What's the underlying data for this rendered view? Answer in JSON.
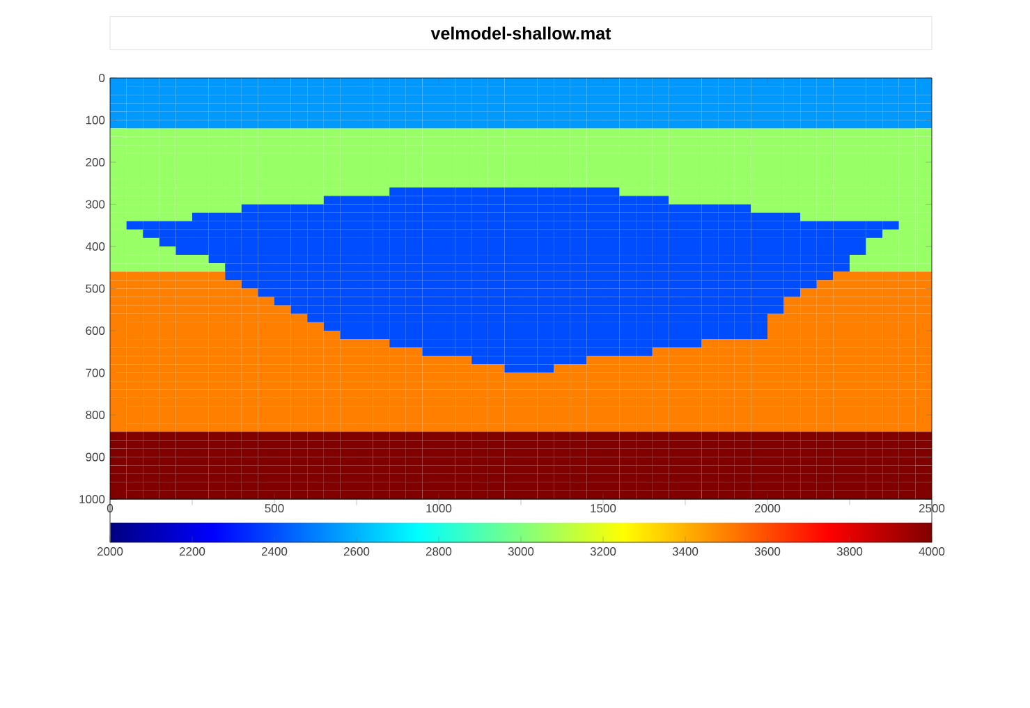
{
  "chart_data": {
    "type": "heatmap",
    "title": "velmodel-shallow.mat",
    "x": [
      25,
      75,
      125,
      175,
      225,
      275,
      325,
      375,
      425,
      475,
      525,
      575,
      625,
      675,
      725,
      775,
      825,
      875,
      925,
      975,
      1025,
      1075,
      1125,
      1175,
      1225,
      1275,
      1325,
      1375,
      1425,
      1475,
      1525,
      1575,
      1625,
      1675,
      1725,
      1775,
      1825,
      1875,
      1925,
      1975,
      2025,
      2075,
      2125,
      2175,
      2225,
      2275,
      2325,
      2375,
      2425,
      2475
    ],
    "y": [
      10,
      30,
      50,
      70,
      90,
      110,
      130,
      150,
      170,
      190,
      210,
      230,
      250,
      270,
      290,
      310,
      330,
      350,
      370,
      390,
      410,
      430,
      450,
      470,
      490,
      510,
      530,
      550,
      570,
      590,
      610,
      630,
      650,
      670,
      690,
      710,
      730,
      750,
      770,
      790,
      810,
      830,
      850,
      870,
      890,
      910,
      930,
      950,
      970,
      990
    ],
    "xlim": [
      0,
      2500
    ],
    "xticks": [
      0,
      500,
      1000,
      1500,
      2000,
      2500
    ],
    "ylim": [
      1000,
      0
    ],
    "yticks": [
      0,
      100,
      200,
      300,
      400,
      500,
      600,
      700,
      800,
      900,
      1000
    ],
    "clim": [
      2000,
      4000
    ],
    "cticks": [
      2000,
      2200,
      2400,
      2600,
      2800,
      3000,
      3200,
      3400,
      3600,
      3800,
      4000
    ],
    "cells": [
      [
        2550,
        2550,
        2550,
        2550,
        2550,
        2550,
        2550,
        2550,
        2550,
        2550,
        2550,
        2550,
        2550,
        2550,
        2550,
        2550,
        2550,
        2550,
        2550,
        2550,
        2550,
        2550,
        2550,
        2550,
        2550,
        2550,
        2550,
        2550,
        2550,
        2550,
        2550,
        2550,
        2550,
        2550,
        2550,
        2550,
        2550,
        2550,
        2550,
        2550,
        2550,
        2550,
        2550,
        2550,
        2550,
        2550,
        2550,
        2550,
        2550,
        2550
      ],
      [
        2550,
        2550,
        2550,
        2550,
        2550,
        2550,
        2550,
        2550,
        2550,
        2550,
        2550,
        2550,
        2550,
        2550,
        2550,
        2550,
        2550,
        2550,
        2550,
        2550,
        2550,
        2550,
        2550,
        2550,
        2550,
        2550,
        2550,
        2550,
        2550,
        2550,
        2550,
        2550,
        2550,
        2550,
        2550,
        2550,
        2550,
        2550,
        2550,
        2550,
        2550,
        2550,
        2550,
        2550,
        2550,
        2550,
        2550,
        2550,
        2550,
        2550
      ],
      [
        2550,
        2550,
        2550,
        2550,
        2550,
        2550,
        2550,
        2550,
        2550,
        2550,
        2550,
        2550,
        2550,
        2550,
        2550,
        2550,
        2550,
        2550,
        2550,
        2550,
        2550,
        2550,
        2550,
        2550,
        2550,
        2550,
        2550,
        2550,
        2550,
        2550,
        2550,
        2550,
        2550,
        2550,
        2550,
        2550,
        2550,
        2550,
        2550,
        2550,
        2550,
        2550,
        2550,
        2550,
        2550,
        2550,
        2550,
        2550,
        2550,
        2550
      ],
      [
        2550,
        2550,
        2550,
        2550,
        2550,
        2550,
        2550,
        2550,
        2550,
        2550,
        2550,
        2550,
        2550,
        2550,
        2550,
        2550,
        2550,
        2550,
        2550,
        2550,
        2550,
        2550,
        2550,
        2550,
        2550,
        2550,
        2550,
        2550,
        2550,
        2550,
        2550,
        2550,
        2550,
        2550,
        2550,
        2550,
        2550,
        2550,
        2550,
        2550,
        2550,
        2550,
        2550,
        2550,
        2550,
        2550,
        2550,
        2550,
        2550,
        2550
      ],
      [
        2550,
        2550,
        2550,
        2550,
        2550,
        2550,
        2550,
        2550,
        2550,
        2550,
        2550,
        2550,
        2550,
        2550,
        2550,
        2550,
        2550,
        2550,
        2550,
        2550,
        2550,
        2550,
        2550,
        2550,
        2550,
        2550,
        2550,
        2550,
        2550,
        2550,
        2550,
        2550,
        2550,
        2550,
        2550,
        2550,
        2550,
        2550,
        2550,
        2550,
        2550,
        2550,
        2550,
        2550,
        2550,
        2550,
        2550,
        2550,
        2550,
        2550
      ],
      [
        2550,
        2550,
        2550,
        2550,
        2550,
        2550,
        2550,
        2550,
        2550,
        2550,
        2550,
        2550,
        2550,
        2550,
        2550,
        2550,
        2550,
        2550,
        2550,
        2550,
        2550,
        2550,
        2550,
        2550,
        2550,
        2550,
        2550,
        2550,
        2550,
        2550,
        2550,
        2550,
        2550,
        2550,
        2550,
        2550,
        2550,
        2550,
        2550,
        2550,
        2550,
        2550,
        2550,
        2550,
        2550,
        2550,
        2550,
        2550,
        2550,
        2550
      ],
      [
        3050,
        3050,
        3050,
        3050,
        3050,
        3050,
        3050,
        3050,
        3050,
        3050,
        3050,
        3050,
        3050,
        3050,
        3050,
        3050,
        3050,
        3050,
        3050,
        3050,
        3050,
        3050,
        3050,
        3050,
        3050,
        3050,
        3050,
        3050,
        3050,
        3050,
        3050,
        3050,
        3050,
        3050,
        3050,
        3050,
        3050,
        3050,
        3050,
        3050,
        3050,
        3050,
        3050,
        3050,
        3050,
        3050,
        3050,
        3050,
        3050,
        3050
      ],
      [
        3050,
        3050,
        3050,
        3050,
        3050,
        3050,
        3050,
        3050,
        3050,
        3050,
        3050,
        3050,
        3050,
        3050,
        3050,
        3050,
        3050,
        3050,
        3050,
        3050,
        3050,
        3050,
        3050,
        3050,
        3050,
        3050,
        3050,
        3050,
        3050,
        3050,
        3050,
        3050,
        3050,
        3050,
        3050,
        3050,
        3050,
        3050,
        3050,
        3050,
        3050,
        3050,
        3050,
        3050,
        3050,
        3050,
        3050,
        3050,
        3050,
        3050
      ],
      [
        3050,
        3050,
        3050,
        3050,
        3050,
        3050,
        3050,
        3050,
        3050,
        3050,
        3050,
        3050,
        3050,
        3050,
        3050,
        3050,
        3050,
        3050,
        3050,
        3050,
        3050,
        3050,
        3050,
        3050,
        3050,
        3050,
        3050,
        3050,
        3050,
        3050,
        3050,
        3050,
        3050,
        3050,
        3050,
        3050,
        3050,
        3050,
        3050,
        3050,
        3050,
        3050,
        3050,
        3050,
        3050,
        3050,
        3050,
        3050,
        3050,
        3050
      ],
      [
        3050,
        3050,
        3050,
        3050,
        3050,
        3050,
        3050,
        3050,
        3050,
        3050,
        3050,
        3050,
        3050,
        3050,
        3050,
        3050,
        3050,
        3050,
        3050,
        3050,
        3050,
        3050,
        3050,
        3050,
        3050,
        3050,
        3050,
        3050,
        3050,
        3050,
        3050,
        3050,
        3050,
        3050,
        3050,
        3050,
        3050,
        3050,
        3050,
        3050,
        3050,
        3050,
        3050,
        3050,
        3050,
        3050,
        3050,
        3050,
        3050,
        3050
      ],
      [
        3050,
        3050,
        3050,
        3050,
        3050,
        3050,
        3050,
        3050,
        3050,
        3050,
        3050,
        3050,
        3050,
        3050,
        3050,
        3050,
        3050,
        3050,
        3050,
        3050,
        3050,
        3050,
        3050,
        3050,
        3050,
        3050,
        3050,
        3050,
        3050,
        3050,
        3050,
        3050,
        3050,
        3050,
        3050,
        3050,
        3050,
        3050,
        3050,
        3050,
        3050,
        3050,
        3050,
        3050,
        3050,
        3050,
        3050,
        3050,
        3050,
        3050
      ],
      [
        3050,
        3050,
        3050,
        3050,
        3050,
        3050,
        3050,
        3050,
        3050,
        3050,
        3050,
        3050,
        3050,
        3050,
        3050,
        3050,
        3050,
        3050,
        3050,
        3050,
        3050,
        3050,
        3050,
        3050,
        3050,
        3050,
        3050,
        3050,
        3050,
        3050,
        3050,
        3050,
        3050,
        3050,
        3050,
        3050,
        3050,
        3050,
        3050,
        3050,
        3050,
        3050,
        3050,
        3050,
        3050,
        3050,
        3050,
        3050,
        3050,
        3050
      ],
      [
        3050,
        3050,
        3050,
        3050,
        3050,
        3050,
        3050,
        3050,
        3050,
        3050,
        3050,
        3050,
        3050,
        3050,
        3050,
        3050,
        3050,
        3050,
        3050,
        3050,
        3050,
        3050,
        3050,
        3050,
        3050,
        3050,
        3050,
        3050,
        3050,
        3050,
        3050,
        3050,
        3050,
        3050,
        3050,
        3050,
        3050,
        3050,
        3050,
        3050,
        3050,
        3050,
        3050,
        3050,
        3050,
        3050,
        3050,
        3050,
        3050,
        3050
      ],
      [
        3050,
        3050,
        3050,
        3050,
        3050,
        3050,
        3050,
        3050,
        3050,
        3050,
        3050,
        3050,
        3050,
        3050,
        3050,
        3050,
        3050,
        2400,
        2400,
        2400,
        2400,
        2400,
        2400,
        2400,
        2400,
        2400,
        2400,
        2400,
        2400,
        2400,
        2400,
        3050,
        3050,
        3050,
        3050,
        3050,
        3050,
        3050,
        3050,
        3050,
        3050,
        3050,
        3050,
        3050,
        3050,
        3050,
        3050,
        3050,
        3050,
        3050
      ],
      [
        3050,
        3050,
        3050,
        3050,
        3050,
        3050,
        3050,
        3050,
        3050,
        3050,
        3050,
        3050,
        3050,
        2400,
        2400,
        2400,
        2400,
        2400,
        2400,
        2400,
        2400,
        2400,
        2400,
        2400,
        2400,
        2400,
        2400,
        2400,
        2400,
        2400,
        2400,
        2400,
        2400,
        2400,
        3050,
        3050,
        3050,
        3050,
        3050,
        3050,
        3050,
        3050,
        3050,
        3050,
        3050,
        3050,
        3050,
        3050,
        3050,
        3050
      ],
      [
        3050,
        3050,
        3050,
        3050,
        3050,
        3050,
        3050,
        3050,
        2400,
        2400,
        2400,
        2400,
        2400,
        2400,
        2400,
        2400,
        2400,
        2400,
        2400,
        2400,
        2400,
        2400,
        2400,
        2400,
        2400,
        2400,
        2400,
        2400,
        2400,
        2400,
        2400,
        2400,
        2400,
        2400,
        2400,
        2400,
        2400,
        2400,
        2400,
        3050,
        3050,
        3050,
        3050,
        3050,
        3050,
        3050,
        3050,
        3050,
        3050,
        3050
      ],
      [
        3050,
        3050,
        3050,
        3050,
        3050,
        2400,
        2400,
        2400,
        2400,
        2400,
        2400,
        2400,
        2400,
        2400,
        2400,
        2400,
        2400,
        2400,
        2400,
        2400,
        2400,
        2400,
        2400,
        2400,
        2400,
        2400,
        2400,
        2400,
        2400,
        2400,
        2400,
        2400,
        2400,
        2400,
        2400,
        2400,
        2400,
        2400,
        2400,
        2400,
        2400,
        2400,
        3050,
        3050,
        3050,
        3050,
        3050,
        3050,
        3050,
        3050
      ],
      [
        3050,
        2400,
        2400,
        2400,
        2400,
        2400,
        2400,
        2400,
        2400,
        2400,
        2400,
        2400,
        2400,
        2400,
        2400,
        2400,
        2400,
        2400,
        2400,
        2400,
        2400,
        2400,
        2400,
        2400,
        2400,
        2400,
        2400,
        2400,
        2400,
        2400,
        2400,
        2400,
        2400,
        2400,
        2400,
        2400,
        2400,
        2400,
        2400,
        2400,
        2400,
        2400,
        2400,
        2400,
        2400,
        2400,
        2400,
        2400,
        3050,
        3050
      ],
      [
        3050,
        3050,
        2400,
        2400,
        2400,
        2400,
        2400,
        2400,
        2400,
        2400,
        2400,
        2400,
        2400,
        2400,
        2400,
        2400,
        2400,
        2400,
        2400,
        2400,
        2400,
        2400,
        2400,
        2400,
        2400,
        2400,
        2400,
        2400,
        2400,
        2400,
        2400,
        2400,
        2400,
        2400,
        2400,
        2400,
        2400,
        2400,
        2400,
        2400,
        2400,
        2400,
        2400,
        2400,
        2400,
        2400,
        2400,
        3050,
        3050,
        3050
      ],
      [
        3050,
        3050,
        3050,
        2400,
        2400,
        2400,
        2400,
        2400,
        2400,
        2400,
        2400,
        2400,
        2400,
        2400,
        2400,
        2400,
        2400,
        2400,
        2400,
        2400,
        2400,
        2400,
        2400,
        2400,
        2400,
        2400,
        2400,
        2400,
        2400,
        2400,
        2400,
        2400,
        2400,
        2400,
        2400,
        2400,
        2400,
        2400,
        2400,
        2400,
        2400,
        2400,
        2400,
        2400,
        2400,
        2400,
        3050,
        3050,
        3050,
        3050
      ],
      [
        3050,
        3050,
        3050,
        3050,
        2400,
        2400,
        2400,
        2400,
        2400,
        2400,
        2400,
        2400,
        2400,
        2400,
        2400,
        2400,
        2400,
        2400,
        2400,
        2400,
        2400,
        2400,
        2400,
        2400,
        2400,
        2400,
        2400,
        2400,
        2400,
        2400,
        2400,
        2400,
        2400,
        2400,
        2400,
        2400,
        2400,
        2400,
        2400,
        2400,
        2400,
        2400,
        2400,
        2400,
        2400,
        2400,
        3050,
        3050,
        3050,
        3050
      ],
      [
        3050,
        3050,
        3050,
        3050,
        3050,
        3050,
        2400,
        2400,
        2400,
        2400,
        2400,
        2400,
        2400,
        2400,
        2400,
        2400,
        2400,
        2400,
        2400,
        2400,
        2400,
        2400,
        2400,
        2400,
        2400,
        2400,
        2400,
        2400,
        2400,
        2400,
        2400,
        2400,
        2400,
        2400,
        2400,
        2400,
        2400,
        2400,
        2400,
        2400,
        2400,
        2400,
        2400,
        2400,
        2400,
        3050,
        3050,
        3050,
        3050,
        3050
      ],
      [
        3050,
        3050,
        3050,
        3050,
        3050,
        3050,
        3050,
        2400,
        2400,
        2400,
        2400,
        2400,
        2400,
        2400,
        2400,
        2400,
        2400,
        2400,
        2400,
        2400,
        2400,
        2400,
        2400,
        2400,
        2400,
        2400,
        2400,
        2400,
        2400,
        2400,
        2400,
        2400,
        2400,
        2400,
        2400,
        2400,
        2400,
        2400,
        2400,
        2400,
        2400,
        2400,
        2400,
        2400,
        2400,
        3050,
        3050,
        3050,
        3050,
        3050
      ],
      [
        3500,
        3500,
        3500,
        3500,
        3500,
        3500,
        3500,
        2400,
        2400,
        2400,
        2400,
        2400,
        2400,
        2400,
        2400,
        2400,
        2400,
        2400,
        2400,
        2400,
        2400,
        2400,
        2400,
        2400,
        2400,
        2400,
        2400,
        2400,
        2400,
        2400,
        2400,
        2400,
        2400,
        2400,
        2400,
        2400,
        2400,
        2400,
        2400,
        2400,
        2400,
        2400,
        2400,
        2400,
        3500,
        3500,
        3500,
        3500,
        3500,
        3500
      ],
      [
        3500,
        3500,
        3500,
        3500,
        3500,
        3500,
        3500,
        3500,
        2400,
        2400,
        2400,
        2400,
        2400,
        2400,
        2400,
        2400,
        2400,
        2400,
        2400,
        2400,
        2400,
        2400,
        2400,
        2400,
        2400,
        2400,
        2400,
        2400,
        2400,
        2400,
        2400,
        2400,
        2400,
        2400,
        2400,
        2400,
        2400,
        2400,
        2400,
        2400,
        2400,
        2400,
        2400,
        3500,
        3500,
        3500,
        3500,
        3500,
        3500,
        3500
      ],
      [
        3500,
        3500,
        3500,
        3500,
        3500,
        3500,
        3500,
        3500,
        3500,
        2400,
        2400,
        2400,
        2400,
        2400,
        2400,
        2400,
        2400,
        2400,
        2400,
        2400,
        2400,
        2400,
        2400,
        2400,
        2400,
        2400,
        2400,
        2400,
        2400,
        2400,
        2400,
        2400,
        2400,
        2400,
        2400,
        2400,
        2400,
        2400,
        2400,
        2400,
        2400,
        2400,
        3500,
        3500,
        3500,
        3500,
        3500,
        3500,
        3500,
        3500
      ],
      [
        3500,
        3500,
        3500,
        3500,
        3500,
        3500,
        3500,
        3500,
        3500,
        3500,
        2400,
        2400,
        2400,
        2400,
        2400,
        2400,
        2400,
        2400,
        2400,
        2400,
        2400,
        2400,
        2400,
        2400,
        2400,
        2400,
        2400,
        2400,
        2400,
        2400,
        2400,
        2400,
        2400,
        2400,
        2400,
        2400,
        2400,
        2400,
        2400,
        2400,
        2400,
        3500,
        3500,
        3500,
        3500,
        3500,
        3500,
        3500,
        3500,
        3500
      ],
      [
        3500,
        3500,
        3500,
        3500,
        3500,
        3500,
        3500,
        3500,
        3500,
        3500,
        3500,
        2400,
        2400,
        2400,
        2400,
        2400,
        2400,
        2400,
        2400,
        2400,
        2400,
        2400,
        2400,
        2400,
        2400,
        2400,
        2400,
        2400,
        2400,
        2400,
        2400,
        2400,
        2400,
        2400,
        2400,
        2400,
        2400,
        2400,
        2400,
        2400,
        2400,
        3500,
        3500,
        3500,
        3500,
        3500,
        3500,
        3500,
        3500,
        3500
      ],
      [
        3500,
        3500,
        3500,
        3500,
        3500,
        3500,
        3500,
        3500,
        3500,
        3500,
        3500,
        3500,
        2400,
        2400,
        2400,
        2400,
        2400,
        2400,
        2400,
        2400,
        2400,
        2400,
        2400,
        2400,
        2400,
        2400,
        2400,
        2400,
        2400,
        2400,
        2400,
        2400,
        2400,
        2400,
        2400,
        2400,
        2400,
        2400,
        2400,
        2400,
        3500,
        3500,
        3500,
        3500,
        3500,
        3500,
        3500,
        3500,
        3500,
        3500
      ],
      [
        3500,
        3500,
        3500,
        3500,
        3500,
        3500,
        3500,
        3500,
        3500,
        3500,
        3500,
        3500,
        3500,
        2400,
        2400,
        2400,
        2400,
        2400,
        2400,
        2400,
        2400,
        2400,
        2400,
        2400,
        2400,
        2400,
        2400,
        2400,
        2400,
        2400,
        2400,
        2400,
        2400,
        2400,
        2400,
        2400,
        2400,
        2400,
        2400,
        2400,
        3500,
        3500,
        3500,
        3500,
        3500,
        3500,
        3500,
        3500,
        3500,
        3500
      ],
      [
        3500,
        3500,
        3500,
        3500,
        3500,
        3500,
        3500,
        3500,
        3500,
        3500,
        3500,
        3500,
        3500,
        3500,
        2400,
        2400,
        2400,
        2400,
        2400,
        2400,
        2400,
        2400,
        2400,
        2400,
        2400,
        2400,
        2400,
        2400,
        2400,
        2400,
        2400,
        2400,
        2400,
        2400,
        2400,
        2400,
        2400,
        2400,
        2400,
        2400,
        3500,
        3500,
        3500,
        3500,
        3500,
        3500,
        3500,
        3500,
        3500,
        3500
      ],
      [
        3500,
        3500,
        3500,
        3500,
        3500,
        3500,
        3500,
        3500,
        3500,
        3500,
        3500,
        3500,
        3500,
        3500,
        3500,
        3500,
        3500,
        2400,
        2400,
        2400,
        2400,
        2400,
        2400,
        2400,
        2400,
        2400,
        2400,
        2400,
        2400,
        2400,
        2400,
        2400,
        2400,
        2400,
        2400,
        2400,
        3500,
        3500,
        3500,
        3500,
        3500,
        3500,
        3500,
        3500,
        3500,
        3500,
        3500,
        3500,
        3500,
        3500
      ],
      [
        3500,
        3500,
        3500,
        3500,
        3500,
        3500,
        3500,
        3500,
        3500,
        3500,
        3500,
        3500,
        3500,
        3500,
        3500,
        3500,
        3500,
        3500,
        3500,
        2400,
        2400,
        2400,
        2400,
        2400,
        2400,
        2400,
        2400,
        2400,
        2400,
        2400,
        2400,
        2400,
        2400,
        3500,
        3500,
        3500,
        3500,
        3500,
        3500,
        3500,
        3500,
        3500,
        3500,
        3500,
        3500,
        3500,
        3500,
        3500,
        3500,
        3500
      ],
      [
        3500,
        3500,
        3500,
        3500,
        3500,
        3500,
        3500,
        3500,
        3500,
        3500,
        3500,
        3500,
        3500,
        3500,
        3500,
        3500,
        3500,
        3500,
        3500,
        3500,
        3500,
        3500,
        2400,
        2400,
        2400,
        2400,
        2400,
        2400,
        2400,
        3500,
        3500,
        3500,
        3500,
        3500,
        3500,
        3500,
        3500,
        3500,
        3500,
        3500,
        3500,
        3500,
        3500,
        3500,
        3500,
        3500,
        3500,
        3500,
        3500,
        3500
      ],
      [
        3500,
        3500,
        3500,
        3500,
        3500,
        3500,
        3500,
        3500,
        3500,
        3500,
        3500,
        3500,
        3500,
        3500,
        3500,
        3500,
        3500,
        3500,
        3500,
        3500,
        3500,
        3500,
        3500,
        3500,
        2400,
        2400,
        2400,
        3500,
        3500,
        3500,
        3500,
        3500,
        3500,
        3500,
        3500,
        3500,
        3500,
        3500,
        3500,
        3500,
        3500,
        3500,
        3500,
        3500,
        3500,
        3500,
        3500,
        3500,
        3500,
        3500
      ],
      [
        3500,
        3500,
        3500,
        3500,
        3500,
        3500,
        3500,
        3500,
        3500,
        3500,
        3500,
        3500,
        3500,
        3500,
        3500,
        3500,
        3500,
        3500,
        3500,
        3500,
        3500,
        3500,
        3500,
        3500,
        3500,
        3500,
        3500,
        3500,
        3500,
        3500,
        3500,
        3500,
        3500,
        3500,
        3500,
        3500,
        3500,
        3500,
        3500,
        3500,
        3500,
        3500,
        3500,
        3500,
        3500,
        3500,
        3500,
        3500,
        3500,
        3500
      ],
      [
        3500,
        3500,
        3500,
        3500,
        3500,
        3500,
        3500,
        3500,
        3500,
        3500,
        3500,
        3500,
        3500,
        3500,
        3500,
        3500,
        3500,
        3500,
        3500,
        3500,
        3500,
        3500,
        3500,
        3500,
        3500,
        3500,
        3500,
        3500,
        3500,
        3500,
        3500,
        3500,
        3500,
        3500,
        3500,
        3500,
        3500,
        3500,
        3500,
        3500,
        3500,
        3500,
        3500,
        3500,
        3500,
        3500,
        3500,
        3500,
        3500,
        3500
      ],
      [
        3500,
        3500,
        3500,
        3500,
        3500,
        3500,
        3500,
        3500,
        3500,
        3500,
        3500,
        3500,
        3500,
        3500,
        3500,
        3500,
        3500,
        3500,
        3500,
        3500,
        3500,
        3500,
        3500,
        3500,
        3500,
        3500,
        3500,
        3500,
        3500,
        3500,
        3500,
        3500,
        3500,
        3500,
        3500,
        3500,
        3500,
        3500,
        3500,
        3500,
        3500,
        3500,
        3500,
        3500,
        3500,
        3500,
        3500,
        3500,
        3500,
        3500
      ],
      [
        3500,
        3500,
        3500,
        3500,
        3500,
        3500,
        3500,
        3500,
        3500,
        3500,
        3500,
        3500,
        3500,
        3500,
        3500,
        3500,
        3500,
        3500,
        3500,
        3500,
        3500,
        3500,
        3500,
        3500,
        3500,
        3500,
        3500,
        3500,
        3500,
        3500,
        3500,
        3500,
        3500,
        3500,
        3500,
        3500,
        3500,
        3500,
        3500,
        3500,
        3500,
        3500,
        3500,
        3500,
        3500,
        3500,
        3500,
        3500,
        3500,
        3500
      ],
      [
        3500,
        3500,
        3500,
        3500,
        3500,
        3500,
        3500,
        3500,
        3500,
        3500,
        3500,
        3500,
        3500,
        3500,
        3500,
        3500,
        3500,
        3500,
        3500,
        3500,
        3500,
        3500,
        3500,
        3500,
        3500,
        3500,
        3500,
        3500,
        3500,
        3500,
        3500,
        3500,
        3500,
        3500,
        3500,
        3500,
        3500,
        3500,
        3500,
        3500,
        3500,
        3500,
        3500,
        3500,
        3500,
        3500,
        3500,
        3500,
        3500,
        3500
      ],
      [
        3500,
        3500,
        3500,
        3500,
        3500,
        3500,
        3500,
        3500,
        3500,
        3500,
        3500,
        3500,
        3500,
        3500,
        3500,
        3500,
        3500,
        3500,
        3500,
        3500,
        3500,
        3500,
        3500,
        3500,
        3500,
        3500,
        3500,
        3500,
        3500,
        3500,
        3500,
        3500,
        3500,
        3500,
        3500,
        3500,
        3500,
        3500,
        3500,
        3500,
        3500,
        3500,
        3500,
        3500,
        3500,
        3500,
        3500,
        3500,
        3500,
        3500
      ],
      [
        3500,
        3500,
        3500,
        3500,
        3500,
        3500,
        3500,
        3500,
        3500,
        3500,
        3500,
        3500,
        3500,
        3500,
        3500,
        3500,
        3500,
        3500,
        3500,
        3500,
        3500,
        3500,
        3500,
        3500,
        3500,
        3500,
        3500,
        3500,
        3500,
        3500,
        3500,
        3500,
        3500,
        3500,
        3500,
        3500,
        3500,
        3500,
        3500,
        3500,
        3500,
        3500,
        3500,
        3500,
        3500,
        3500,
        3500,
        3500,
        3500,
        3500
      ],
      [
        4000,
        4000,
        4000,
        4000,
        4000,
        4000,
        4000,
        4000,
        4000,
        4000,
        4000,
        4000,
        4000,
        4000,
        4000,
        4000,
        4000,
        4000,
        4000,
        4000,
        4000,
        4000,
        4000,
        4000,
        4000,
        4000,
        4000,
        4000,
        4000,
        4000,
        4000,
        4000,
        4000,
        4000,
        4000,
        4000,
        4000,
        4000,
        4000,
        4000,
        4000,
        4000,
        4000,
        4000,
        4000,
        4000,
        4000,
        4000,
        4000,
        4000
      ],
      [
        4000,
        4000,
        4000,
        4000,
        4000,
        4000,
        4000,
        4000,
        4000,
        4000,
        4000,
        4000,
        4000,
        4000,
        4000,
        4000,
        4000,
        4000,
        4000,
        4000,
        4000,
        4000,
        4000,
        4000,
        4000,
        4000,
        4000,
        4000,
        4000,
        4000,
        4000,
        4000,
        4000,
        4000,
        4000,
        4000,
        4000,
        4000,
        4000,
        4000,
        4000,
        4000,
        4000,
        4000,
        4000,
        4000,
        4000,
        4000,
        4000,
        4000
      ],
      [
        4000,
        4000,
        4000,
        4000,
        4000,
        4000,
        4000,
        4000,
        4000,
        4000,
        4000,
        4000,
        4000,
        4000,
        4000,
        4000,
        4000,
        4000,
        4000,
        4000,
        4000,
        4000,
        4000,
        4000,
        4000,
        4000,
        4000,
        4000,
        4000,
        4000,
        4000,
        4000,
        4000,
        4000,
        4000,
        4000,
        4000,
        4000,
        4000,
        4000,
        4000,
        4000,
        4000,
        4000,
        4000,
        4000,
        4000,
        4000,
        4000,
        4000
      ],
      [
        4000,
        4000,
        4000,
        4000,
        4000,
        4000,
        4000,
        4000,
        4000,
        4000,
        4000,
        4000,
        4000,
        4000,
        4000,
        4000,
        4000,
        4000,
        4000,
        4000,
        4000,
        4000,
        4000,
        4000,
        4000,
        4000,
        4000,
        4000,
        4000,
        4000,
        4000,
        4000,
        4000,
        4000,
        4000,
        4000,
        4000,
        4000,
        4000,
        4000,
        4000,
        4000,
        4000,
        4000,
        4000,
        4000,
        4000,
        4000,
        4000,
        4000
      ],
      [
        4000,
        4000,
        4000,
        4000,
        4000,
        4000,
        4000,
        4000,
        4000,
        4000,
        4000,
        4000,
        4000,
        4000,
        4000,
        4000,
        4000,
        4000,
        4000,
        4000,
        4000,
        4000,
        4000,
        4000,
        4000,
        4000,
        4000,
        4000,
        4000,
        4000,
        4000,
        4000,
        4000,
        4000,
        4000,
        4000,
        4000,
        4000,
        4000,
        4000,
        4000,
        4000,
        4000,
        4000,
        4000,
        4000,
        4000,
        4000,
        4000,
        4000
      ],
      [
        4000,
        4000,
        4000,
        4000,
        4000,
        4000,
        4000,
        4000,
        4000,
        4000,
        4000,
        4000,
        4000,
        4000,
        4000,
        4000,
        4000,
        4000,
        4000,
        4000,
        4000,
        4000,
        4000,
        4000,
        4000,
        4000,
        4000,
        4000,
        4000,
        4000,
        4000,
        4000,
        4000,
        4000,
        4000,
        4000,
        4000,
        4000,
        4000,
        4000,
        4000,
        4000,
        4000,
        4000,
        4000,
        4000,
        4000,
        4000,
        4000,
        4000
      ],
      [
        4000,
        4000,
        4000,
        4000,
        4000,
        4000,
        4000,
        4000,
        4000,
        4000,
        4000,
        4000,
        4000,
        4000,
        4000,
        4000,
        4000,
        4000,
        4000,
        4000,
        4000,
        4000,
        4000,
        4000,
        4000,
        4000,
        4000,
        4000,
        4000,
        4000,
        4000,
        4000,
        4000,
        4000,
        4000,
        4000,
        4000,
        4000,
        4000,
        4000,
        4000,
        4000,
        4000,
        4000,
        4000,
        4000,
        4000,
        4000,
        4000,
        4000
      ],
      [
        4000,
        4000,
        4000,
        4000,
        4000,
        4000,
        4000,
        4000,
        4000,
        4000,
        4000,
        4000,
        4000,
        4000,
        4000,
        4000,
        4000,
        4000,
        4000,
        4000,
        4000,
        4000,
        4000,
        4000,
        4000,
        4000,
        4000,
        4000,
        4000,
        4000,
        4000,
        4000,
        4000,
        4000,
        4000,
        4000,
        4000,
        4000,
        4000,
        4000,
        4000,
        4000,
        4000,
        4000,
        4000,
        4000,
        4000,
        4000,
        4000,
        4000
      ]
    ]
  }
}
